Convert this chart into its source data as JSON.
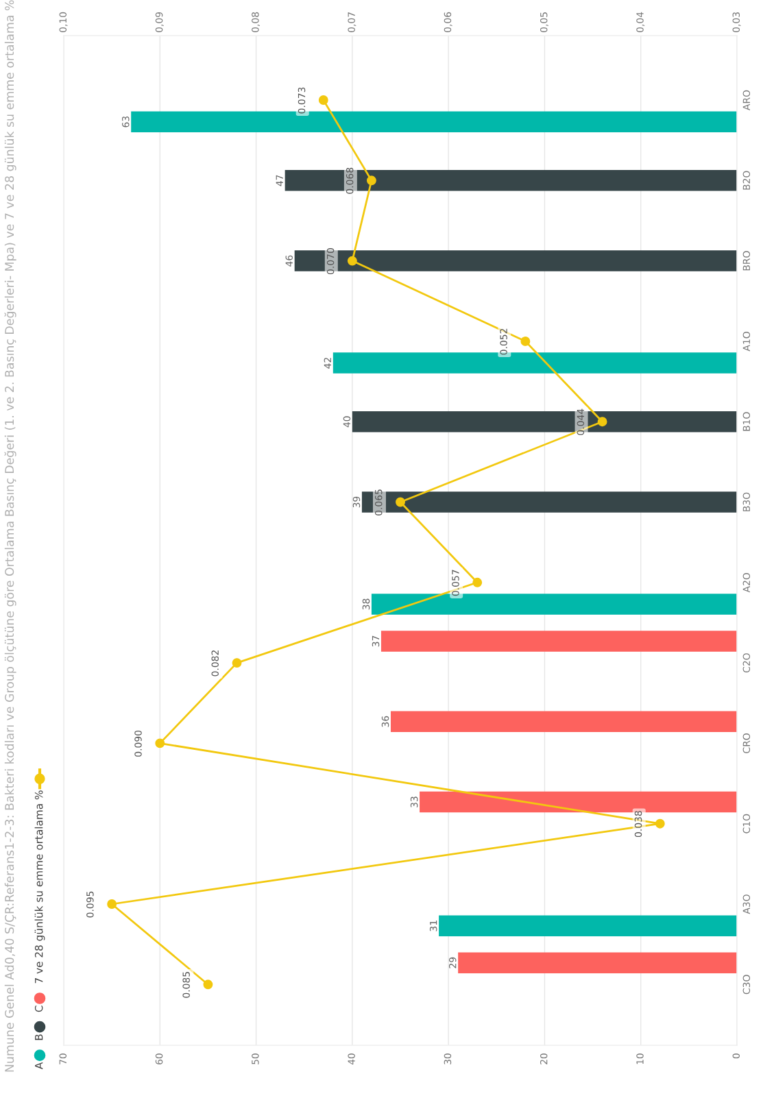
{
  "chart_data": {
    "type": "bar",
    "orientation": "horizontal",
    "title": "Numune Genel Ad0,40 S/ÇR:Referans1-2-3: Bakteri kodları ve Group ölçütüne göre Ortalama Basınç Değeri (1. ve 2. Basınç Değerleri- Mpa) ve 7 ve 28 günlük su emme ortalama %",
    "categories": [
      "ARO",
      "B2O",
      "BRO",
      "A1O",
      "B1O",
      "B3O",
      "A2O",
      "C2O",
      "CRO",
      "C1O",
      "A3O",
      "C3O"
    ],
    "series": [
      {
        "name": "A",
        "color": "#01b8aa",
        "values": [
          63,
          null,
          null,
          42,
          null,
          null,
          38,
          null,
          null,
          null,
          31,
          null
        ]
      },
      {
        "name": "B",
        "color": "#374649",
        "values": [
          null,
          47,
          46,
          null,
          40,
          39,
          null,
          null,
          null,
          null,
          null,
          null
        ]
      },
      {
        "name": "C",
        "color": "#fd625e",
        "values": [
          null,
          null,
          null,
          null,
          null,
          null,
          null,
          37,
          36,
          33,
          null,
          29
        ]
      },
      {
        "name": "7 ve 28 günlük su emme ortalama %",
        "type": "line",
        "axis": "x2",
        "color": "#f2c80f",
        "marker": "circle",
        "values": [
          0.073,
          0.068,
          0.07,
          0.052,
          0.044,
          0.065,
          0.057,
          0.082,
          0.09,
          0.038,
          0.095,
          0.085
        ],
        "value_labels": [
          "0.073",
          "0.068",
          "0.070",
          "0.052",
          "0.044",
          "0.065",
          "0.057",
          "0.082",
          "0.090",
          "0.038",
          "0.095",
          "0.085"
        ]
      }
    ],
    "xlim": [
      70,
      0
    ],
    "xticks": [
      70,
      60,
      50,
      40,
      30,
      20,
      10,
      0
    ],
    "x2lim": [
      0.1,
      0.03
    ],
    "x2ticks": [
      {
        "value": 0.1,
        "label": "0,10"
      },
      {
        "value": 0.09,
        "label": "0,09"
      },
      {
        "value": 0.08,
        "label": "0,08"
      },
      {
        "value": 0.07,
        "label": "0,07"
      },
      {
        "value": 0.06,
        "label": "0,06"
      },
      {
        "value": 0.05,
        "label": "0,05"
      },
      {
        "value": 0.04,
        "label": "0,04"
      },
      {
        "value": 0.03,
        "label": "0,03"
      }
    ],
    "grid": "x",
    "legend": "left",
    "data_labels": true
  }
}
